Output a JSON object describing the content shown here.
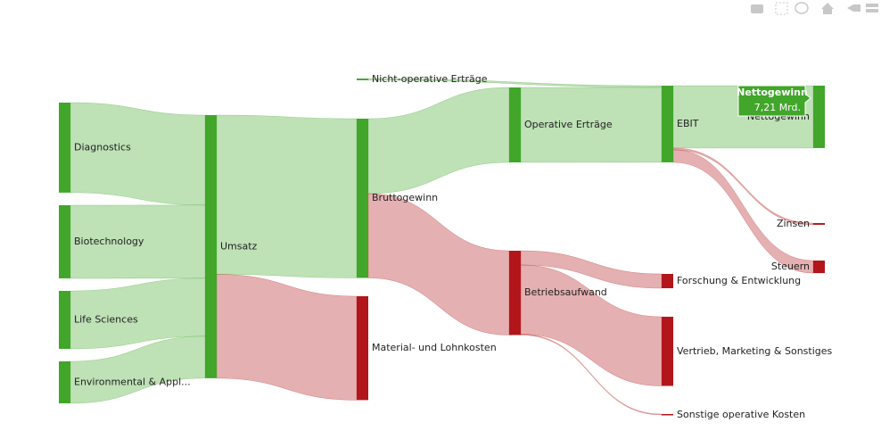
{
  "chart_data": {
    "type": "sankey",
    "nodes": [
      {
        "label": "Diagnostics",
        "color": "#41a62a"
      },
      {
        "label": "Biotechnology",
        "color": "#41a62a"
      },
      {
        "label": "Life Sciences",
        "color": "#41a62a"
      },
      {
        "label": "Environmental & Appl...",
        "color": "#41a62a"
      },
      {
        "label": "Umsatz",
        "color": "#41a62a"
      },
      {
        "label": "Bruttogewinn",
        "color": "#41a62a"
      },
      {
        "label": "Material- und Lohnkosten",
        "color": "#b2161a"
      },
      {
        "label": "Nicht-operative Erträge",
        "color": "#41a62a"
      },
      {
        "label": "Operative Erträge",
        "color": "#41a62a"
      },
      {
        "label": "Betriebsaufwand",
        "color": "#b2161a"
      },
      {
        "label": "EBIT",
        "color": "#41a62a"
      },
      {
        "label": "Forschung & Entwicklung",
        "color": "#b2161a"
      },
      {
        "label": "Vertrieb, Marketing & Sonstiges",
        "color": "#b2161a"
      },
      {
        "label": "Sonstige operative Kosten",
        "color": "#b2161a"
      },
      {
        "label": "Nettogewinn",
        "color": "#41a62a"
      },
      {
        "label": "Zinsen",
        "color": "#b2161a"
      },
      {
        "label": "Steuern",
        "color": "#b2161a"
      }
    ],
    "links": {
      "source": [
        0,
        1,
        2,
        3,
        4,
        4,
        5,
        5,
        7,
        8,
        9,
        9,
        9,
        10,
        10,
        10
      ],
      "target": [
        4,
        4,
        4,
        4,
        5,
        6,
        8,
        9,
        10,
        10,
        11,
        12,
        13,
        14,
        15,
        16
      ],
      "values": [
        10.4,
        8.45,
        6.7,
        4.85,
        18.4,
        12.0,
        8.66,
        9.74,
        0.2,
        8.66,
        1.65,
        7.99,
        0.1,
        7.21,
        0.2,
        1.45
      ]
    },
    "tooltip": {
      "value": 7.21,
      "value_label": "7,21 Mrd."
    }
  }
}
